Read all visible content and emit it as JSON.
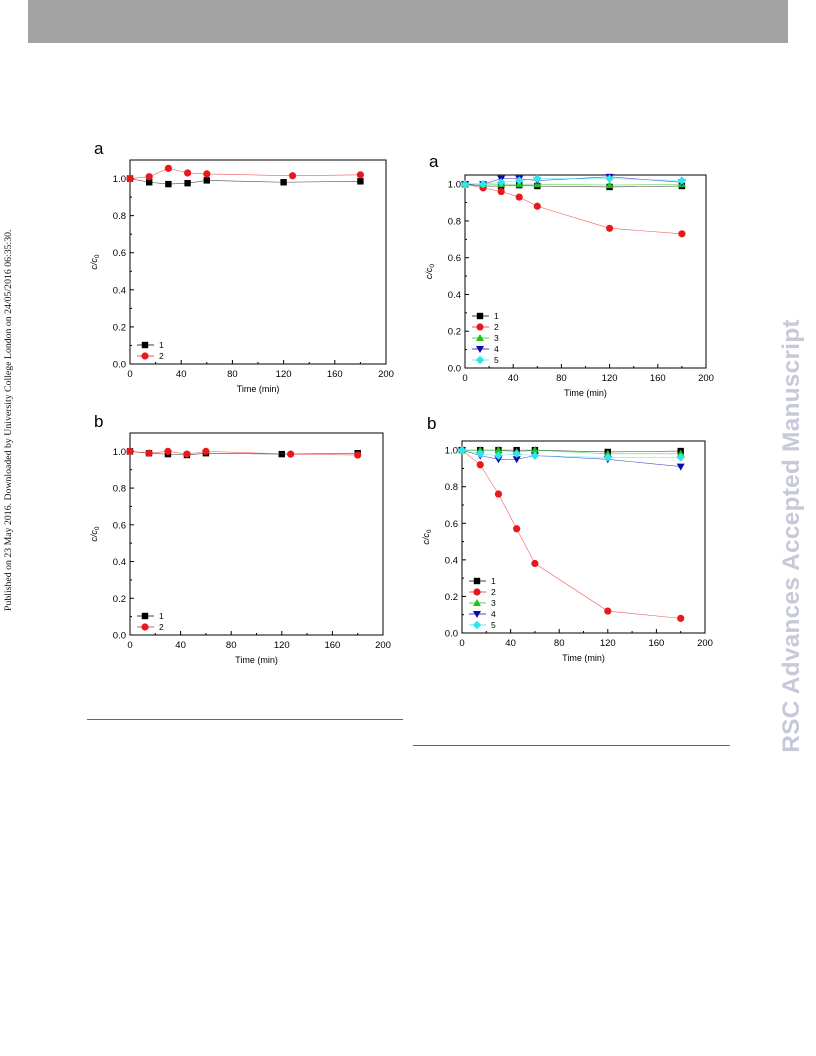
{
  "side_note": "Published on 23 May 2016. Downloaded by University College London on 24/05/2016 06:35:30.",
  "watermark": "RSC Advances Accepted Manuscript",
  "chart_data": [
    {
      "id": "left-a",
      "panel_label": "a",
      "type": "line",
      "xlabel": "Time (min)",
      "ylabel": "c/c0",
      "ylabel_main": "c/c",
      "ylabel_sub": "0",
      "xlim": [
        0,
        200
      ],
      "ylim": [
        0,
        1.1
      ],
      "xticks": [
        0,
        40,
        80,
        120,
        160,
        200
      ],
      "yticks": [
        0.0,
        0.2,
        0.4,
        0.6,
        0.8,
        1.0
      ],
      "legend_position": "bottom-left",
      "series": [
        {
          "name": "1",
          "color": "#000000",
          "marker": "square",
          "x": [
            0,
            15,
            30,
            45,
            60,
            120,
            180
          ],
          "y": [
            1.0,
            0.98,
            0.97,
            0.975,
            0.99,
            0.98,
            0.985
          ]
        },
        {
          "name": "2",
          "color": "#e8191c",
          "marker": "circle",
          "x": [
            0,
            15,
            30,
            45,
            60,
            127,
            180
          ],
          "y": [
            1.0,
            1.01,
            1.055,
            1.03,
            1.025,
            1.015,
            1.02
          ]
        }
      ]
    },
    {
      "id": "left-b",
      "panel_label": "b",
      "type": "line",
      "xlabel": "Time (min)",
      "ylabel": "c/c0",
      "ylabel_main": "c/c",
      "ylabel_sub": "0",
      "xlim": [
        0,
        200
      ],
      "ylim": [
        0,
        1.1
      ],
      "xticks": [
        0,
        40,
        80,
        120,
        160,
        200
      ],
      "yticks": [
        0.0,
        0.2,
        0.4,
        0.6,
        0.8,
        1.0
      ],
      "legend_position": "bottom-left",
      "series": [
        {
          "name": "1",
          "color": "#000000",
          "marker": "square",
          "x": [
            0,
            15,
            30,
            45,
            60,
            120,
            180
          ],
          "y": [
            1.0,
            0.99,
            0.985,
            0.98,
            0.99,
            0.985,
            0.99
          ]
        },
        {
          "name": "2",
          "color": "#e8191c",
          "marker": "circle",
          "x": [
            0,
            15,
            30,
            45,
            60,
            127,
            180
          ],
          "y": [
            1.0,
            0.99,
            1.0,
            0.985,
            1.0,
            0.985,
            0.98
          ]
        }
      ]
    },
    {
      "id": "right-a",
      "panel_label": "a",
      "type": "line",
      "xlabel": "Time (min)",
      "ylabel": "c/c0",
      "ylabel_main": "c/c",
      "ylabel_sub": "0",
      "xlim": [
        0,
        200
      ],
      "ylim": [
        0,
        1.05
      ],
      "xticks": [
        0,
        40,
        80,
        120,
        160,
        200
      ],
      "yticks": [
        0.0,
        0.2,
        0.4,
        0.6,
        0.8,
        1.0
      ],
      "legend_position": "bottom-left",
      "series": [
        {
          "name": "1",
          "color": "#000000",
          "marker": "square",
          "x": [
            0,
            15,
            30,
            45,
            60,
            120,
            180
          ],
          "y": [
            1.0,
            0.99,
            0.99,
            0.995,
            0.99,
            0.985,
            0.99
          ]
        },
        {
          "name": "2",
          "color": "#e8191c",
          "marker": "circle",
          "x": [
            0,
            15,
            30,
            45,
            60,
            120,
            180
          ],
          "y": [
            1.0,
            0.98,
            0.96,
            0.93,
            0.88,
            0.76,
            0.73
          ]
        },
        {
          "name": "3",
          "color": "#1fc21f",
          "marker": "triangle-up",
          "x": [
            0,
            15,
            30,
            45,
            60,
            120,
            180
          ],
          "y": [
            1.0,
            1.0,
            1.0,
            1.0,
            1.0,
            0.995,
            1.0
          ]
        },
        {
          "name": "4",
          "color": "#0a0aa8",
          "marker": "triangle-down",
          "x": [
            0,
            15,
            30,
            45,
            60,
            120,
            180
          ],
          "y": [
            1.0,
            1.0,
            1.03,
            1.03,
            1.02,
            1.04,
            1.01
          ]
        },
        {
          "name": "5",
          "color": "#2ee6f0",
          "marker": "diamond",
          "x": [
            0,
            15,
            30,
            45,
            60,
            120,
            180
          ],
          "y": [
            1.0,
            1.0,
            1.01,
            1.02,
            1.03,
            1.03,
            1.02
          ]
        }
      ]
    },
    {
      "id": "right-b",
      "panel_label": "b",
      "type": "line",
      "xlabel": "Time (min)",
      "ylabel": "c/c0",
      "ylabel_main": "c/c",
      "ylabel_sub": "0",
      "xlim": [
        0,
        200
      ],
      "ylim": [
        0,
        1.05
      ],
      "xticks": [
        0,
        40,
        80,
        120,
        160,
        200
      ],
      "yticks": [
        0.0,
        0.2,
        0.4,
        0.6,
        0.8,
        1.0
      ],
      "legend_position": "bottom-left",
      "series": [
        {
          "name": "1",
          "color": "#000000",
          "marker": "square",
          "x": [
            0,
            15,
            30,
            45,
            60,
            120,
            180
          ],
          "y": [
            1.0,
            1.0,
            1.0,
            1.0,
            1.0,
            0.99,
            0.995
          ]
        },
        {
          "name": "2",
          "color": "#e8191c",
          "marker": "circle",
          "x": [
            0,
            15,
            30,
            45,
            60,
            120,
            180
          ],
          "y": [
            1.0,
            0.92,
            0.76,
            0.57,
            0.38,
            0.12,
            0.08
          ]
        },
        {
          "name": "3",
          "color": "#1fc21f",
          "marker": "triangle-up",
          "x": [
            0,
            15,
            30,
            45,
            60,
            120,
            180
          ],
          "y": [
            1.0,
            1.0,
            1.0,
            0.99,
            1.0,
            0.98,
            0.98
          ]
        },
        {
          "name": "4",
          "color": "#0a0aa8",
          "marker": "triangle-down",
          "x": [
            0,
            15,
            30,
            45,
            60,
            120,
            180
          ],
          "y": [
            1.0,
            0.97,
            0.95,
            0.95,
            0.97,
            0.95,
            0.91
          ]
        },
        {
          "name": "5",
          "color": "#2ee6f0",
          "marker": "diamond",
          "x": [
            0,
            15,
            30,
            45,
            60,
            120,
            180
          ],
          "y": [
            1.0,
            0.98,
            0.97,
            0.98,
            0.97,
            0.96,
            0.96
          ]
        }
      ]
    }
  ]
}
